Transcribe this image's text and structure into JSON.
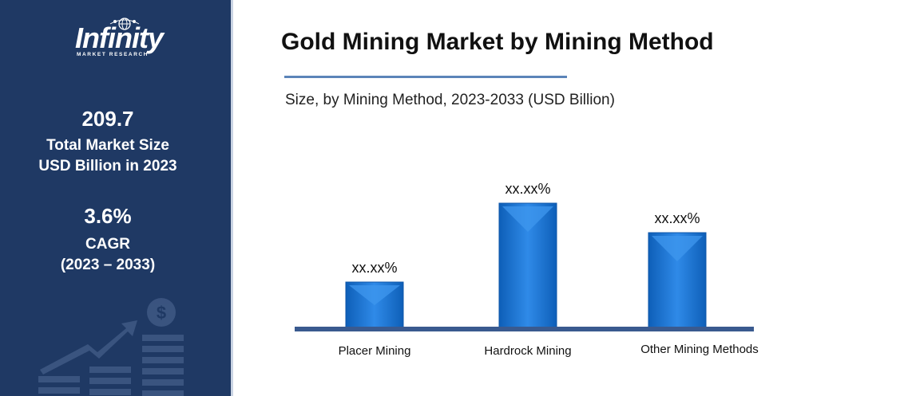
{
  "brand": {
    "name": "Infinity",
    "tagline": "MARKET RESEARCH"
  },
  "sidebar": {
    "market_size_value": "209.7",
    "market_size_label": "Total Market Size",
    "market_size_unit": "USD Billion in 2023",
    "cagr_value": "3.6%",
    "cagr_label": "CAGR",
    "cagr_period": "(2023 – 2033)"
  },
  "colors": {
    "sidebar_bg": "#1f3964",
    "bar_main": "#1673d8",
    "bar_light": "#3f97ee",
    "bar_dark": "#0c55a8",
    "baseline": "#3a5a8f"
  },
  "chart_data": {
    "type": "bar",
    "title": "Gold Mining Market by Mining Method",
    "subtitle": "Size, by Mining Method, 2023-2033 (USD Billion)",
    "categories": [
      "Placer Mining",
      "Hardrock Mining",
      "Other Mining Methods"
    ],
    "values": [
      58,
      157,
      120
    ],
    "data_labels": [
      "xx.xx%",
      "xx.xx%",
      "xx.xx%"
    ],
    "ylim": [
      0,
      170
    ],
    "grid": false,
    "legend": "none"
  }
}
